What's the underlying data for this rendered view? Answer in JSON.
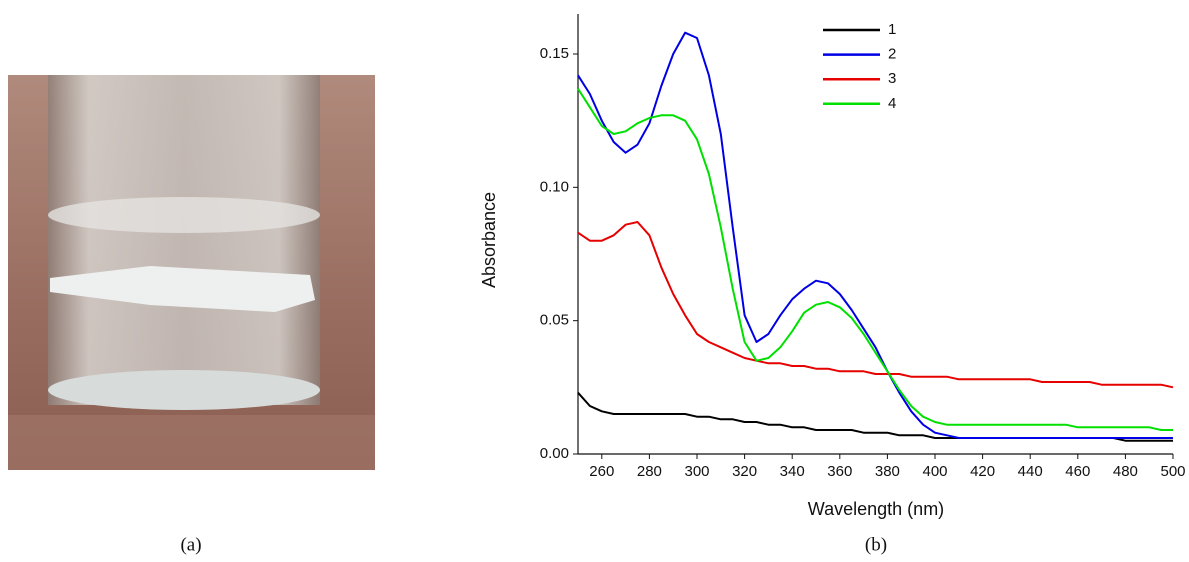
{
  "captions": {
    "a": "(a)",
    "b": "(b)"
  },
  "chart_data": {
    "type": "line",
    "xlabel": "Wavelength (nm)",
    "ylabel": "Absorbance",
    "x": [
      250,
      255,
      260,
      265,
      270,
      275,
      280,
      285,
      290,
      295,
      300,
      305,
      310,
      315,
      320,
      325,
      330,
      335,
      340,
      345,
      350,
      355,
      360,
      365,
      370,
      375,
      380,
      385,
      390,
      395,
      400,
      405,
      410,
      415,
      420,
      425,
      430,
      435,
      440,
      445,
      450,
      455,
      460,
      465,
      470,
      475,
      480,
      485,
      490,
      495,
      500
    ],
    "xlim": [
      250,
      500
    ],
    "xticks": [
      260,
      280,
      300,
      320,
      340,
      360,
      380,
      400,
      420,
      440,
      460,
      480,
      500
    ],
    "ylim": [
      0,
      0.165
    ],
    "yticks": [
      {
        "value": 0,
        "label": "0.00"
      },
      0.05,
      {
        "value": 0.1,
        "label": "0.10"
      },
      0.15
    ],
    "legend": "top",
    "series": [
      {
        "name": "1",
        "color": "#000000",
        "values": [
          0.023,
          0.018,
          0.016,
          0.015,
          0.015,
          0.015,
          0.015,
          0.015,
          0.015,
          0.015,
          0.014,
          0.014,
          0.013,
          0.013,
          0.012,
          0.012,
          0.011,
          0.011,
          0.01,
          0.01,
          0.009,
          0.009,
          0.009,
          0.009,
          0.008,
          0.008,
          0.008,
          0.007,
          0.007,
          0.007,
          0.006,
          0.006,
          0.006,
          0.006,
          0.006,
          0.006,
          0.006,
          0.006,
          0.006,
          0.006,
          0.006,
          0.006,
          0.006,
          0.006,
          0.006,
          0.006,
          0.005,
          0.005,
          0.005,
          0.005,
          0.005
        ]
      },
      {
        "name": "2",
        "color": "#0000e6",
        "values": [
          0.142,
          0.135,
          0.125,
          0.117,
          0.113,
          0.116,
          0.124,
          0.138,
          0.15,
          0.158,
          0.156,
          0.142,
          0.12,
          0.085,
          0.052,
          0.042,
          0.045,
          0.052,
          0.058,
          0.062,
          0.065,
          0.064,
          0.06,
          0.054,
          0.047,
          0.04,
          0.031,
          0.023,
          0.016,
          0.011,
          0.008,
          0.007,
          0.006,
          0.006,
          0.006,
          0.006,
          0.006,
          0.006,
          0.006,
          0.006,
          0.006,
          0.006,
          0.006,
          0.006,
          0.006,
          0.006,
          0.006,
          0.006,
          0.006,
          0.006,
          0.006
        ]
      },
      {
        "name": "3",
        "color": "#e60000",
        "values": [
          0.083,
          0.08,
          0.08,
          0.082,
          0.086,
          0.087,
          0.082,
          0.07,
          0.06,
          0.052,
          0.045,
          0.042,
          0.04,
          0.038,
          0.036,
          0.035,
          0.034,
          0.034,
          0.033,
          0.033,
          0.032,
          0.032,
          0.031,
          0.031,
          0.031,
          0.03,
          0.03,
          0.03,
          0.029,
          0.029,
          0.029,
          0.029,
          0.028,
          0.028,
          0.028,
          0.028,
          0.028,
          0.028,
          0.028,
          0.027,
          0.027,
          0.027,
          0.027,
          0.027,
          0.026,
          0.026,
          0.026,
          0.026,
          0.026,
          0.026,
          0.025
        ]
      },
      {
        "name": "4",
        "color": "#00e000",
        "values": [
          0.137,
          0.13,
          0.123,
          0.12,
          0.121,
          0.124,
          0.126,
          0.127,
          0.127,
          0.125,
          0.118,
          0.105,
          0.085,
          0.062,
          0.042,
          0.035,
          0.036,
          0.04,
          0.046,
          0.053,
          0.056,
          0.057,
          0.055,
          0.051,
          0.045,
          0.038,
          0.031,
          0.024,
          0.018,
          0.014,
          0.012,
          0.011,
          0.011,
          0.011,
          0.011,
          0.011,
          0.011,
          0.011,
          0.011,
          0.011,
          0.011,
          0.011,
          0.01,
          0.01,
          0.01,
          0.01,
          0.01,
          0.01,
          0.01,
          0.009,
          0.009
        ]
      }
    ]
  }
}
